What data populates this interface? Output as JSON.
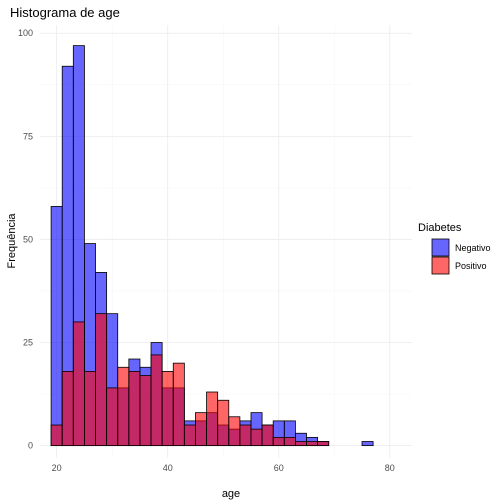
{
  "chart_data": {
    "type": "histogram",
    "title": "Histograma de age",
    "xlabel": "age",
    "ylabel": "Frequência",
    "xlim": [
      17,
      84
    ],
    "ylim": [
      -3,
      102
    ],
    "x_ticks": [
      20,
      40,
      60,
      80
    ],
    "y_ticks": [
      0,
      25,
      50,
      75,
      100
    ],
    "bin_width": 2,
    "bin_starts": [
      19,
      21,
      23,
      25,
      27,
      29,
      31,
      33,
      35,
      37,
      39,
      41,
      43,
      45,
      47,
      49,
      51,
      53,
      55,
      57,
      59,
      61,
      63,
      65,
      67,
      69,
      71,
      73,
      75,
      77,
      79,
      81
    ],
    "grid": true,
    "legend": {
      "title": "Diabetes",
      "position": "right"
    },
    "series": [
      {
        "name": "Negativo",
        "color": "#0000ff",
        "opacity": 0.6,
        "values": [
          58,
          92,
          97,
          49,
          42,
          32,
          14,
          21,
          19,
          25,
          14,
          14,
          6,
          6,
          8,
          5,
          4,
          6,
          8,
          5,
          6,
          6,
          3,
          2,
          1,
          0,
          0,
          0,
          1,
          0,
          0,
          0
        ]
      },
      {
        "name": "Positivo",
        "color": "#ff0000",
        "opacity": 0.6,
        "values": [
          5,
          18,
          30,
          18,
          32,
          14,
          19,
          18,
          17,
          22,
          18,
          20,
          5,
          8,
          13,
          11,
          7,
          5,
          4,
          5,
          2,
          2,
          1,
          1,
          1,
          0,
          0,
          0,
          0,
          0,
          0,
          0
        ]
      }
    ]
  }
}
